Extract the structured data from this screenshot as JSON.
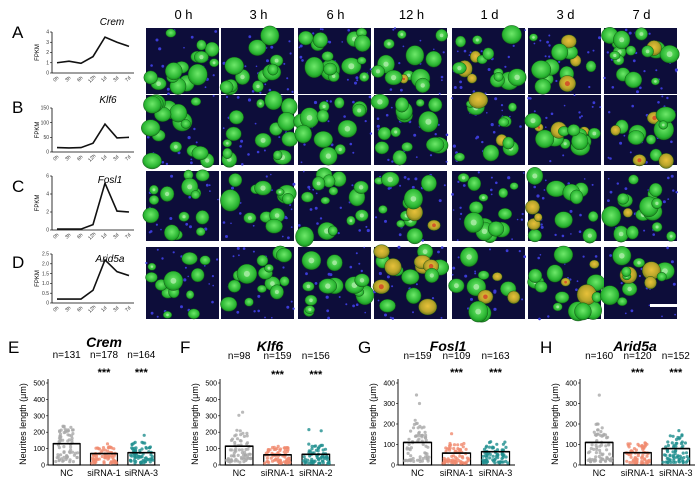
{
  "colors": {
    "nc": "#a9a9a9",
    "sirna1": "#f08a6e",
    "sirna3": "#1f8f8f",
    "cell_green": "#2fc23a",
    "tissue_blue": "#1a1a6a"
  },
  "time_labels": [
    "0 h",
    "3 h",
    "6 h",
    "12 h",
    "1 d",
    "3 d",
    "7 d"
  ],
  "scale_bar_icon": "scale-bar",
  "chart_data": [
    {
      "panel": "A",
      "type": "line",
      "title": "Crem",
      "ylabel": "FPKM",
      "x": [
        "0h",
        "3h",
        "6h",
        "12h",
        "1d",
        "3d",
        "7d"
      ],
      "ylim": [
        0,
        4
      ],
      "yticks": [
        "0",
        "1",
        "2",
        "3",
        "4"
      ],
      "values": [
        1.0,
        1.15,
        0.95,
        1.6,
        3.5,
        3.0,
        2.6
      ]
    },
    {
      "panel": "B",
      "type": "line",
      "title": "Klf6",
      "ylabel": "FPKM",
      "x": [
        "0h",
        "3h",
        "6h",
        "12h",
        "1d",
        "3d",
        "7d"
      ],
      "ylim": [
        0,
        150
      ],
      "yticks": [
        "0",
        "50",
        "100",
        "150"
      ],
      "values": [
        15,
        14,
        15,
        30,
        95,
        48,
        50
      ]
    },
    {
      "panel": "C",
      "type": "line",
      "title": "Fosl1",
      "ylabel": "FPKM",
      "x": [
        "0h",
        "3h",
        "6h",
        "12h",
        "1d",
        "3d",
        "7d"
      ],
      "ylim": [
        0,
        6
      ],
      "yticks": [
        "0",
        "2",
        "4",
        "6"
      ],
      "values": [
        0.1,
        0.1,
        0.1,
        0.6,
        5.2,
        2.1,
        2.0
      ]
    },
    {
      "panel": "D",
      "type": "line",
      "title": "Arid5a",
      "ylabel": "FPKM",
      "x": [
        "0h",
        "3h",
        "6h",
        "12h",
        "1d",
        "3d",
        "7d"
      ],
      "ylim": [
        0,
        2.5
      ],
      "yticks": [
        "0",
        "0.5",
        "1.0",
        "1.5",
        "2.0",
        "2.5"
      ],
      "values": [
        0.2,
        0.2,
        0.2,
        0.65,
        2.2,
        1.6,
        1.4
      ]
    },
    {
      "panel": "E",
      "type": "bar",
      "title": "Crem",
      "ylabel": "Neurites length (μm)",
      "ylim": [
        0,
        500
      ],
      "yticks": [
        "0",
        "100",
        "200",
        "300",
        "400",
        "500"
      ],
      "categories": [
        "NC",
        "siRNA-1",
        "siRNA-3"
      ],
      "values": [
        130,
        70,
        75
      ],
      "n_labels": [
        "n=131",
        "n=178",
        "n=164"
      ],
      "significance": [
        "",
        "***",
        "***"
      ]
    },
    {
      "panel": "F",
      "type": "bar",
      "title": "Klf6",
      "ylabel": "Neurites length (μm)",
      "ylim": [
        0,
        500
      ],
      "yticks": [
        "0",
        "100",
        "200",
        "300",
        "400",
        "500"
      ],
      "categories": [
        "NC",
        "siRNA-1",
        "siRNA-2"
      ],
      "values": [
        115,
        62,
        65
      ],
      "n_labels": [
        "n=98",
        "n=159",
        "n=156"
      ],
      "significance": [
        "",
        "***",
        "***"
      ]
    },
    {
      "panel": "G",
      "type": "bar",
      "title": "Fosl1",
      "ylabel": "Neurites length (μm)",
      "ylim": [
        0,
        400
      ],
      "yticks": [
        "0",
        "100",
        "200",
        "300",
        "400"
      ],
      "categories": [
        "NC",
        "siRNA-1",
        "siRNA-3"
      ],
      "values": [
        110,
        58,
        65
      ],
      "n_labels": [
        "n=159",
        "n=109",
        "n=163"
      ],
      "significance": [
        "",
        "***",
        "***"
      ]
    },
    {
      "panel": "H",
      "type": "bar",
      "title": "Arid5a",
      "ylabel": "Neurites length (μm)",
      "ylim": [
        0,
        400
      ],
      "yticks": [
        "0",
        "100",
        "200",
        "300",
        "400"
      ],
      "categories": [
        "NC",
        "siRNA-1",
        "siRNA-3"
      ],
      "values": [
        110,
        60,
        80
      ],
      "n_labels": [
        "n=160",
        "n=120",
        "n=152"
      ],
      "significance": [
        "",
        "***",
        "***"
      ]
    }
  ]
}
